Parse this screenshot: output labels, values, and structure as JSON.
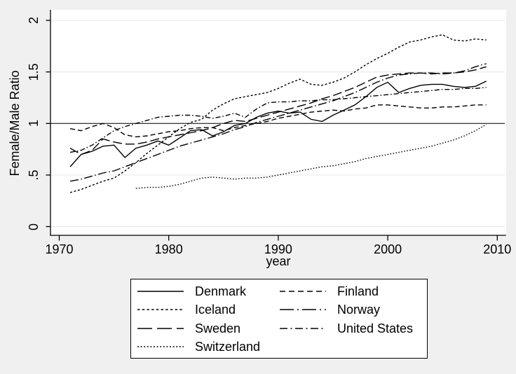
{
  "figure": {
    "background": "#f0f0f0",
    "plot_background": "#ffffff",
    "grid_color": "#e6e6e6",
    "line_color": "#000000"
  },
  "axes": {
    "y_title": "Female/Male Ratio",
    "x_title": "year",
    "y_ticks": [
      {
        "value": 0,
        "label": "0"
      },
      {
        "value": 0.5,
        "label": ".5"
      },
      {
        "value": 1,
        "label": "1"
      },
      {
        "value": 1.5,
        "label": "1.5"
      },
      {
        "value": 2,
        "label": "2"
      }
    ],
    "x_ticks": [
      {
        "value": 1970,
        "label": "1970"
      },
      {
        "value": 1980,
        "label": "1980"
      },
      {
        "value": 1990,
        "label": "1990"
      },
      {
        "value": 2000,
        "label": "2000"
      },
      {
        "value": 2010,
        "label": "2010"
      }
    ]
  },
  "chart_data": {
    "type": "line",
    "xlabel": "year",
    "ylabel": "Female/Male Ratio",
    "xlim": [
      1969.2,
      2010.8
    ],
    "ylim": [
      0,
      2
    ],
    "grid": "horizontal",
    "reference_line_y": 1,
    "legend_position": "bottom",
    "x": [
      1971,
      1972,
      1973,
      1974,
      1975,
      1976,
      1977,
      1978,
      1979,
      1980,
      1981,
      1982,
      1983,
      1984,
      1985,
      1986,
      1987,
      1988,
      1989,
      1990,
      1991,
      1992,
      1993,
      1994,
      1995,
      1996,
      1997,
      1998,
      1999,
      2000,
      2001,
      2002,
      2003,
      2004,
      2005,
      2006,
      2007,
      2008,
      2009
    ],
    "series": [
      {
        "name": "Denmark",
        "line_style": "solid",
        "values": [
          0.58,
          0.7,
          0.73,
          0.78,
          0.79,
          0.67,
          0.76,
          0.79,
          0.83,
          0.79,
          0.86,
          0.93,
          0.94,
          0.88,
          0.92,
          0.98,
          1.0,
          1.06,
          1.1,
          1.12,
          1.1,
          1.11,
          1.04,
          1.02,
          1.08,
          1.13,
          1.18,
          1.26,
          1.35,
          1.4,
          1.3,
          1.34,
          1.37,
          1.38,
          1.38,
          1.36,
          1.35,
          1.36,
          1.41
        ]
      },
      {
        "name": "Finland",
        "line_style": "dash",
        "values": [
          0.95,
          0.93,
          0.97,
          1.0,
          0.96,
          0.89,
          0.87,
          0.88,
          0.9,
          0.92,
          0.93,
          0.95,
          0.96,
          0.96,
          0.93,
          0.96,
          0.98,
          1.0,
          1.02,
          1.05,
          1.07,
          1.09,
          1.11,
          1.12,
          1.13,
          1.12,
          1.14,
          1.15,
          1.18,
          1.18,
          1.17,
          1.16,
          1.15,
          1.15,
          1.16,
          1.16,
          1.17,
          1.18,
          1.18
        ]
      },
      {
        "name": "Iceland",
        "line_style": "shortdash",
        "values": [
          0.33,
          0.36,
          0.4,
          0.44,
          0.47,
          0.54,
          0.62,
          0.71,
          0.79,
          0.87,
          0.95,
          1.01,
          1.04,
          1.13,
          1.19,
          1.24,
          1.26,
          1.28,
          1.3,
          1.34,
          1.39,
          1.43,
          1.38,
          1.37,
          1.4,
          1.44,
          1.5,
          1.57,
          1.63,
          1.68,
          1.74,
          1.79,
          1.81,
          1.84,
          1.86,
          1.81,
          1.8,
          1.82,
          1.81
        ]
      },
      {
        "name": "Norway",
        "line_style": "longdash_dot",
        "values": [
          0.44,
          0.46,
          0.49,
          0.52,
          0.54,
          0.58,
          0.62,
          0.66,
          0.7,
          0.74,
          0.78,
          0.81,
          0.84,
          0.87,
          0.9,
          0.94,
          0.97,
          1.01,
          1.04,
          1.07,
          1.1,
          1.13,
          1.16,
          1.19,
          1.22,
          1.26,
          1.3,
          1.35,
          1.4,
          1.44,
          1.47,
          1.48,
          1.49,
          1.49,
          1.48,
          1.49,
          1.51,
          1.55,
          1.58
        ]
      },
      {
        "name": "Sweden",
        "line_style": "longdash",
        "values": [
          0.76,
          0.7,
          0.74,
          0.85,
          0.82,
          0.8,
          0.8,
          0.82,
          0.85,
          0.87,
          0.89,
          0.91,
          0.93,
          0.96,
          1.0,
          1.03,
          1.02,
          1.05,
          1.08,
          1.11,
          1.14,
          1.17,
          1.2,
          1.24,
          1.27,
          1.31,
          1.35,
          1.4,
          1.45,
          1.47,
          1.48,
          1.49,
          1.49,
          1.48,
          1.49,
          1.49,
          1.5,
          1.52,
          1.55
        ]
      },
      {
        "name": "United States",
        "line_style": "dash_dot",
        "values": [
          0.72,
          0.74,
          0.79,
          0.86,
          0.93,
          0.97,
          1.0,
          1.03,
          1.06,
          1.07,
          1.08,
          1.08,
          1.07,
          1.05,
          1.07,
          1.1,
          1.06,
          1.14,
          1.2,
          1.21,
          1.21,
          1.22,
          1.22,
          1.23,
          1.23,
          1.24,
          1.25,
          1.26,
          1.27,
          1.28,
          1.29,
          1.3,
          1.31,
          1.32,
          1.33,
          1.33,
          1.34,
          1.34,
          1.35
        ]
      },
      {
        "name": "Switzerland",
        "line_style": "dot",
        "values": [
          null,
          null,
          null,
          null,
          null,
          null,
          0.37,
          0.38,
          0.38,
          0.39,
          0.41,
          0.44,
          0.47,
          0.48,
          0.47,
          0.46,
          0.47,
          0.47,
          0.48,
          0.5,
          0.52,
          0.54,
          0.56,
          0.58,
          0.59,
          0.61,
          0.63,
          0.66,
          0.68,
          0.7,
          0.72,
          0.74,
          0.76,
          0.78,
          0.81,
          0.84,
          0.88,
          0.93,
          0.99
        ]
      }
    ]
  }
}
